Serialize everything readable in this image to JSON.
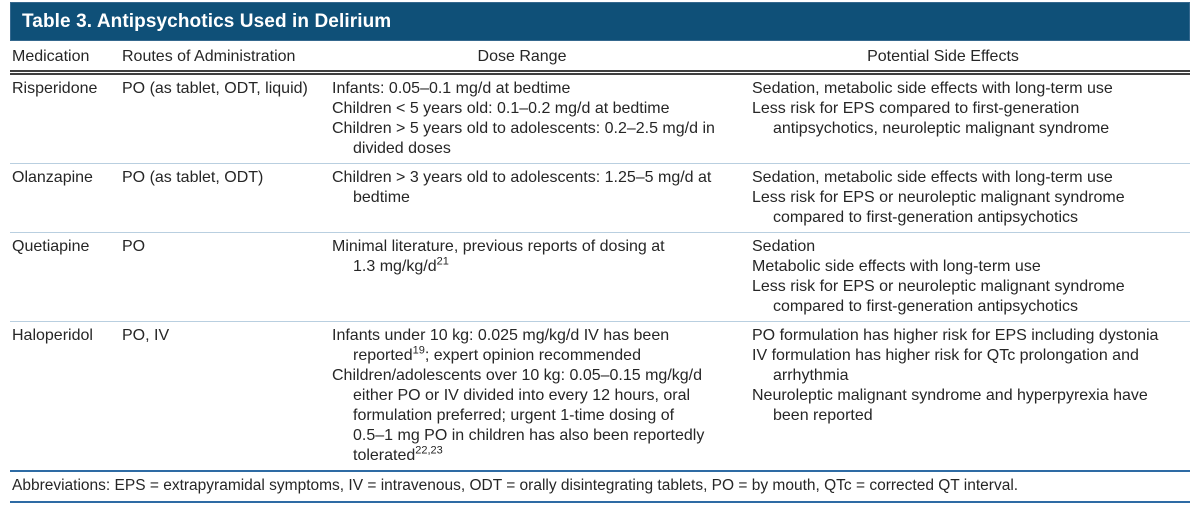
{
  "title": "Table 3. Antipsychotics Used in Delirium",
  "columns": {
    "medication": "Medication",
    "routes": "Routes of Administration",
    "dose": "Dose Range",
    "side_effects": "Potential Side Effects"
  },
  "rows": [
    {
      "medication": "Risperidone",
      "routes": "PO (as tablet, ODT, liquid)",
      "dose_lines": [
        {
          "t": "Infants: 0.05–0.1 mg/d at bedtime",
          "ind": false
        },
        {
          "t": "Children < 5 years old: 0.1–0.2 mg/d at bedtime",
          "ind": false
        },
        {
          "t": "Children > 5 years old to adolescents: 0.2–2.5 mg/d in",
          "ind": false
        },
        {
          "t": "divided doses",
          "ind": true
        }
      ],
      "side_effect_lines": [
        {
          "t": "Sedation, metabolic side effects with long-term use",
          "ind": false
        },
        {
          "t": "Less risk for EPS compared to first-generation",
          "ind": false
        },
        {
          "t": "antipsychotics, neuroleptic malignant syndrome",
          "ind": true
        }
      ]
    },
    {
      "medication": "Olanzapine",
      "routes": "PO (as tablet, ODT)",
      "dose_lines": [
        {
          "t": "Children > 3 years old to adolescents: 1.25–5 mg/d at",
          "ind": false
        },
        {
          "t": "bedtime",
          "ind": true
        }
      ],
      "side_effect_lines": [
        {
          "t": "Sedation, metabolic side effects with long-term use",
          "ind": false
        },
        {
          "t": "Less risk for EPS or neuroleptic malignant syndrome",
          "ind": false
        },
        {
          "t": "compared to first-generation antipsychotics",
          "ind": true
        }
      ]
    },
    {
      "medication": "Quetiapine",
      "routes": "PO",
      "dose_lines": [
        {
          "t": "Minimal literature, previous reports of dosing at",
          "ind": false
        },
        {
          "t": "1.3 mg/kg/d^21^",
          "ind": true
        }
      ],
      "side_effect_lines": [
        {
          "t": "Sedation",
          "ind": false
        },
        {
          "t": "Metabolic side effects with long-term use",
          "ind": false
        },
        {
          "t": "Less risk for EPS or neuroleptic malignant syndrome",
          "ind": false
        },
        {
          "t": "compared to first-generation antipsychotics",
          "ind": true
        }
      ]
    },
    {
      "medication": "Haloperidol",
      "routes": "PO, IV",
      "dose_lines": [
        {
          "t": "Infants under 10 kg: 0.025 mg/kg/d IV has been",
          "ind": false
        },
        {
          "t": "reported^19^; expert opinion recommended",
          "ind": true
        },
        {
          "t": "Children/adolescents over 10 kg: 0.05–0.15 mg/kg/d",
          "ind": false
        },
        {
          "t": "either PO or IV divided into every 12 hours, oral",
          "ind": true
        },
        {
          "t": "formulation preferred; urgent 1-time dosing of",
          "ind": true
        },
        {
          "t": "0.5–1 mg PO in children has also been reportedly",
          "ind": true
        },
        {
          "t": "tolerated^22,23^",
          "ind": true
        }
      ],
      "side_effect_lines": [
        {
          "t": "PO formulation has higher risk for EPS including dystonia",
          "ind": false
        },
        {
          "t": "IV formulation has higher risk for QTc prolongation and",
          "ind": false
        },
        {
          "t": "arrhythmia",
          "ind": true
        },
        {
          "t": "Neuroleptic malignant syndrome and hyperpyrexia have",
          "ind": false
        },
        {
          "t": "been reported",
          "ind": true
        }
      ]
    }
  ],
  "footnote": "Abbreviations: EPS = extrapyramidal symptoms, IV = intravenous, ODT = orally disintegrating tablets, PO = by mouth, QTc = corrected QT interval.",
  "colors": {
    "title_bar": "#0f5078",
    "title_bar_border": "#35688e",
    "header_rule": "#3f3f3f",
    "row_divider": "#b9cfe0",
    "footer_rule": "#2e6ba4",
    "text": "#262626"
  }
}
